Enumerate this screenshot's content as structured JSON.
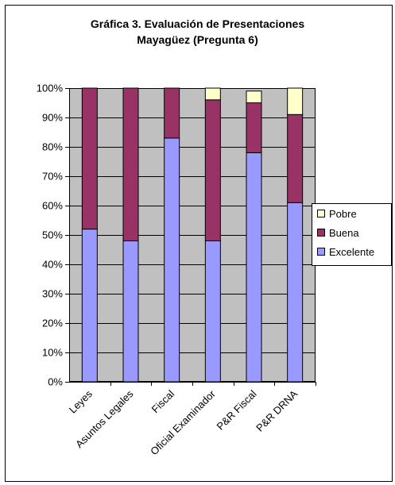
{
  "chart_data": {
    "type": "stacked-bar-100",
    "title_line1": "Gráfica 3.  Evaluación de Presentaciones",
    "title_line2": "Mayagüez (Pregunta 6)",
    "categories": [
      "Leyes",
      "Asuntos Legales",
      "Fiscal",
      "Oficial Examinador",
      "P&R Fiscal",
      "P&R DRNA"
    ],
    "series": [
      {
        "name": "Excelente",
        "color": "#9999ff",
        "values": [
          52,
          48,
          83,
          48,
          78,
          61
        ]
      },
      {
        "name": "Buena",
        "color": "#993366",
        "values": [
          48,
          52,
          17,
          48,
          17,
          30
        ]
      },
      {
        "name": "Pobre",
        "color": "#ffffcc",
        "values": [
          0,
          0,
          0,
          4,
          4,
          9
        ]
      }
    ],
    "y_ticks": [
      "0%",
      "10%",
      "20%",
      "30%",
      "40%",
      "50%",
      "60%",
      "70%",
      "80%",
      "90%",
      "100%"
    ],
    "ylim": [
      0,
      100
    ],
    "plot_background": "#c0c0c0",
    "grid": true,
    "legend_position": "right",
    "legend_order": [
      "Pobre",
      "Buena",
      "Excelente"
    ]
  }
}
